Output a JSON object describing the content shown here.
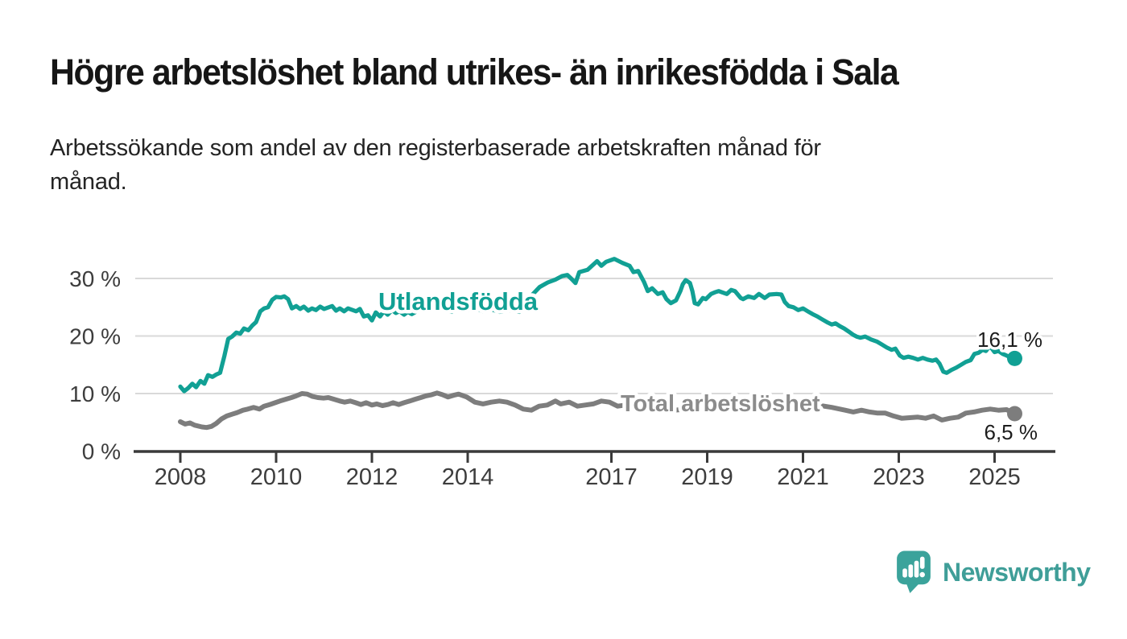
{
  "header": {
    "title": "Högre arbetslöshet bland utrikes- än inrikesfödda i Sala",
    "subtitle_line1": "Arbetssökande som andel av den registerbaserade arbetskraften månad för",
    "subtitle_line2": "månad.",
    "subtitle_full": "Arbetssökande som andel av den registerbaserade arbetskraften månad för månad."
  },
  "chart_data": {
    "type": "line",
    "title": "Högre arbetslöshet bland utrikes- än inrikesfödda i Sala",
    "xlabel": "",
    "ylabel": "",
    "unit": "%",
    "grid": "horizontal",
    "x_axis": {
      "ticks": [
        2008,
        2010,
        2012,
        2014,
        2017,
        2019,
        2021,
        2023,
        2025
      ],
      "labels": [
        "2008",
        "2010",
        "2012",
        "2014",
        "2017",
        "2019",
        "2021",
        "2023",
        "2025"
      ],
      "range_years": [
        2007.05,
        2026.25
      ]
    },
    "y_axis": {
      "ticks": [
        0,
        10,
        20,
        30
      ],
      "labels": [
        "0 %",
        "10 %",
        "20 %",
        "30 %"
      ],
      "grid_values": [
        10,
        20,
        30
      ],
      "range": [
        0,
        35
      ]
    },
    "style": {
      "grid_color": "#d9d9d9",
      "axis_color": "#3a3a3a",
      "value_label_color": "#1d1d1d",
      "background": "#ffffff"
    },
    "series": [
      {
        "id": "utlandsfodda",
        "name": "Utlandsfödda",
        "color": "#11a094",
        "label_color": "#11a094",
        "width": 5.2,
        "dot_r": 9.5,
        "end_value": 16.1,
        "end_label": "16,1 %",
        "points": [
          [
            2008.0,
            11.2
          ],
          [
            2008.08,
            10.4
          ],
          [
            2008.17,
            11.0
          ],
          [
            2008.25,
            11.7
          ],
          [
            2008.33,
            11.1
          ],
          [
            2008.42,
            12.2
          ],
          [
            2008.5,
            11.7
          ],
          [
            2008.58,
            13.2
          ],
          [
            2008.67,
            12.9
          ],
          [
            2008.75,
            13.3
          ],
          [
            2008.83,
            13.6
          ],
          [
            2008.92,
            16.5
          ],
          [
            2009.0,
            19.5
          ],
          [
            2009.08,
            19.9
          ],
          [
            2009.17,
            20.6
          ],
          [
            2009.25,
            20.4
          ],
          [
            2009.33,
            21.3
          ],
          [
            2009.42,
            21.0
          ],
          [
            2009.5,
            21.8
          ],
          [
            2009.58,
            22.4
          ],
          [
            2009.67,
            24.3
          ],
          [
            2009.75,
            24.8
          ],
          [
            2009.83,
            25.0
          ],
          [
            2009.92,
            26.3
          ],
          [
            2010.0,
            26.8
          ],
          [
            2010.1,
            26.7
          ],
          [
            2010.17,
            26.9
          ],
          [
            2010.25,
            26.4
          ],
          [
            2010.33,
            24.8
          ],
          [
            2010.42,
            25.2
          ],
          [
            2010.5,
            24.7
          ],
          [
            2010.58,
            25.1
          ],
          [
            2010.67,
            24.4
          ],
          [
            2010.75,
            24.8
          ],
          [
            2010.83,
            24.5
          ],
          [
            2010.92,
            25.1
          ],
          [
            2011.0,
            24.7
          ],
          [
            2011.17,
            25.2
          ],
          [
            2011.25,
            24.4
          ],
          [
            2011.33,
            24.8
          ],
          [
            2011.42,
            24.3
          ],
          [
            2011.5,
            24.8
          ],
          [
            2011.67,
            24.3
          ],
          [
            2011.75,
            24.7
          ],
          [
            2011.83,
            23.4
          ],
          [
            2011.92,
            23.6
          ],
          [
            2012.0,
            22.7
          ],
          [
            2012.08,
            24.1
          ],
          [
            2012.17,
            23.4
          ],
          [
            2012.25,
            24.3
          ],
          [
            2012.33,
            23.7
          ],
          [
            2012.42,
            24.5
          ],
          [
            2012.5,
            24.0
          ],
          [
            2012.58,
            24.3
          ],
          [
            2012.67,
            23.7
          ],
          [
            2012.75,
            24.2
          ],
          [
            2012.83,
            23.8
          ],
          [
            2013.0,
            24.6
          ],
          [
            2013.17,
            25.0
          ],
          [
            2013.33,
            24.4
          ],
          [
            2013.5,
            24.8
          ],
          [
            2013.67,
            24.2
          ],
          [
            2013.83,
            24.9
          ],
          [
            2014.0,
            24.5
          ],
          [
            2014.17,
            24.8
          ],
          [
            2014.33,
            24.3
          ],
          [
            2014.5,
            24.6
          ],
          [
            2014.67,
            24.2
          ],
          [
            2014.83,
            24.5
          ],
          [
            2015.0,
            24.4
          ],
          [
            2015.08,
            24.2
          ],
          [
            2015.17,
            25.3
          ],
          [
            2015.33,
            27.0
          ],
          [
            2015.5,
            28.5
          ],
          [
            2015.67,
            29.3
          ],
          [
            2015.83,
            29.8
          ],
          [
            2015.97,
            30.4
          ],
          [
            2016.08,
            30.6
          ],
          [
            2016.17,
            29.9
          ],
          [
            2016.25,
            29.2
          ],
          [
            2016.33,
            31.1
          ],
          [
            2016.5,
            31.5
          ],
          [
            2016.7,
            33.0
          ],
          [
            2016.79,
            32.2
          ],
          [
            2016.89,
            32.9
          ],
          [
            2017.06,
            33.4
          ],
          [
            2017.23,
            32.7
          ],
          [
            2017.38,
            32.2
          ],
          [
            2017.46,
            31.1
          ],
          [
            2017.56,
            31.3
          ],
          [
            2017.68,
            29.4
          ],
          [
            2017.76,
            27.8
          ],
          [
            2017.85,
            28.3
          ],
          [
            2017.97,
            27.3
          ],
          [
            2018.07,
            27.6
          ],
          [
            2018.15,
            26.4
          ],
          [
            2018.24,
            25.7
          ],
          [
            2018.35,
            26.2
          ],
          [
            2018.44,
            27.8
          ],
          [
            2018.49,
            29.0
          ],
          [
            2018.55,
            29.7
          ],
          [
            2018.64,
            29.2
          ],
          [
            2018.69,
            27.8
          ],
          [
            2018.74,
            25.7
          ],
          [
            2018.81,
            25.5
          ],
          [
            2018.91,
            26.6
          ],
          [
            2018.97,
            26.4
          ],
          [
            2019.08,
            27.3
          ],
          [
            2019.16,
            27.6
          ],
          [
            2019.24,
            27.8
          ],
          [
            2019.31,
            27.6
          ],
          [
            2019.41,
            27.3
          ],
          [
            2019.5,
            28.0
          ],
          [
            2019.58,
            27.8
          ],
          [
            2019.7,
            26.6
          ],
          [
            2019.75,
            26.4
          ],
          [
            2019.86,
            26.9
          ],
          [
            2019.98,
            26.6
          ],
          [
            2020.08,
            27.3
          ],
          [
            2020.2,
            26.6
          ],
          [
            2020.3,
            27.2
          ],
          [
            2020.45,
            27.3
          ],
          [
            2020.55,
            27.2
          ],
          [
            2020.62,
            25.9
          ],
          [
            2020.7,
            25.2
          ],
          [
            2020.8,
            25.0
          ],
          [
            2020.9,
            24.5
          ],
          [
            2021.0,
            24.8
          ],
          [
            2021.1,
            24.3
          ],
          [
            2021.2,
            23.8
          ],
          [
            2021.3,
            23.4
          ],
          [
            2021.4,
            22.9
          ],
          [
            2021.5,
            22.4
          ],
          [
            2021.6,
            22.0
          ],
          [
            2021.68,
            22.2
          ],
          [
            2021.77,
            21.7
          ],
          [
            2021.86,
            21.3
          ],
          [
            2021.95,
            20.8
          ],
          [
            2022.05,
            20.2
          ],
          [
            2022.12,
            19.9
          ],
          [
            2022.2,
            19.7
          ],
          [
            2022.3,
            19.9
          ],
          [
            2022.42,
            19.4
          ],
          [
            2022.55,
            19.0
          ],
          [
            2022.65,
            18.5
          ],
          [
            2022.75,
            18.0
          ],
          [
            2022.85,
            17.6
          ],
          [
            2022.93,
            17.8
          ],
          [
            2023.02,
            16.6
          ],
          [
            2023.1,
            16.2
          ],
          [
            2023.2,
            16.4
          ],
          [
            2023.3,
            16.2
          ],
          [
            2023.4,
            15.9
          ],
          [
            2023.5,
            16.2
          ],
          [
            2023.6,
            15.9
          ],
          [
            2023.7,
            15.7
          ],
          [
            2023.78,
            15.9
          ],
          [
            2023.85,
            15.2
          ],
          [
            2023.93,
            13.8
          ],
          [
            2024.0,
            13.6
          ],
          [
            2024.1,
            14.1
          ],
          [
            2024.2,
            14.5
          ],
          [
            2024.3,
            15.0
          ],
          [
            2024.4,
            15.5
          ],
          [
            2024.5,
            15.8
          ],
          [
            2024.58,
            16.9
          ],
          [
            2024.67,
            17.1
          ],
          [
            2024.75,
            17.6
          ],
          [
            2024.82,
            17.4
          ],
          [
            2024.9,
            18.3
          ],
          [
            2025.0,
            17.2
          ],
          [
            2025.08,
            17.4
          ],
          [
            2025.17,
            16.9
          ],
          [
            2025.25,
            16.6
          ],
          [
            2025.33,
            16.3
          ],
          [
            2025.42,
            16.1
          ]
        ]
      },
      {
        "id": "total",
        "name": "Total arbetslöshet",
        "color": "#7d7d7d",
        "label_color": "#8c8c8c",
        "width": 6,
        "dot_r": 9.5,
        "end_value": 6.5,
        "end_label": "6,5 %",
        "points": [
          [
            2008.0,
            5.1
          ],
          [
            2008.1,
            4.7
          ],
          [
            2008.2,
            4.9
          ],
          [
            2008.3,
            4.5
          ],
          [
            2008.45,
            4.2
          ],
          [
            2008.55,
            4.1
          ],
          [
            2008.65,
            4.3
          ],
          [
            2008.75,
            4.8
          ],
          [
            2008.86,
            5.6
          ],
          [
            2008.97,
            6.1
          ],
          [
            2009.08,
            6.4
          ],
          [
            2009.19,
            6.7
          ],
          [
            2009.31,
            7.1
          ],
          [
            2009.41,
            7.3
          ],
          [
            2009.53,
            7.6
          ],
          [
            2009.65,
            7.3
          ],
          [
            2009.75,
            7.8
          ],
          [
            2009.87,
            8.1
          ],
          [
            2009.98,
            8.4
          ],
          [
            2010.08,
            8.7
          ],
          [
            2010.2,
            9.0
          ],
          [
            2010.32,
            9.3
          ],
          [
            2010.42,
            9.6
          ],
          [
            2010.54,
            10.0
          ],
          [
            2010.65,
            9.9
          ],
          [
            2010.76,
            9.5
          ],
          [
            2010.87,
            9.3
          ],
          [
            2010.99,
            9.2
          ],
          [
            2011.09,
            9.3
          ],
          [
            2011.21,
            9.0
          ],
          [
            2011.33,
            8.7
          ],
          [
            2011.43,
            8.5
          ],
          [
            2011.55,
            8.7
          ],
          [
            2011.66,
            8.4
          ],
          [
            2011.77,
            8.1
          ],
          [
            2011.88,
            8.4
          ],
          [
            2012.0,
            8.0
          ],
          [
            2012.1,
            8.2
          ],
          [
            2012.22,
            7.9
          ],
          [
            2012.34,
            8.1
          ],
          [
            2012.44,
            8.4
          ],
          [
            2012.56,
            8.1
          ],
          [
            2012.67,
            8.4
          ],
          [
            2012.79,
            8.7
          ],
          [
            2012.9,
            9.0
          ],
          [
            2013.02,
            9.3
          ],
          [
            2013.13,
            9.6
          ],
          [
            2013.25,
            9.8
          ],
          [
            2013.36,
            10.1
          ],
          [
            2013.47,
            9.8
          ],
          [
            2013.59,
            9.4
          ],
          [
            2013.71,
            9.7
          ],
          [
            2013.81,
            9.9
          ],
          [
            2013.98,
            9.4
          ],
          [
            2014.15,
            8.5
          ],
          [
            2014.32,
            8.2
          ],
          [
            2014.49,
            8.5
          ],
          [
            2014.66,
            8.7
          ],
          [
            2014.82,
            8.5
          ],
          [
            2014.99,
            8.0
          ],
          [
            2015.16,
            7.3
          ],
          [
            2015.33,
            7.1
          ],
          [
            2015.49,
            7.8
          ],
          [
            2015.66,
            8.0
          ],
          [
            2015.83,
            8.7
          ],
          [
            2015.94,
            8.2
          ],
          [
            2016.12,
            8.5
          ],
          [
            2016.29,
            7.8
          ],
          [
            2016.45,
            8.0
          ],
          [
            2016.62,
            8.2
          ],
          [
            2016.79,
            8.7
          ],
          [
            2016.96,
            8.5
          ],
          [
            2017.13,
            7.8
          ],
          [
            2017.3,
            8.0
          ],
          [
            2017.5,
            7.9
          ],
          [
            2017.8,
            7.6
          ],
          [
            2018.0,
            7.4
          ],
          [
            2018.3,
            7.1
          ],
          [
            2018.6,
            7.3
          ],
          [
            2019.0,
            7.0
          ],
          [
            2019.4,
            7.2
          ],
          [
            2019.8,
            7.4
          ],
          [
            2020.2,
            8.6
          ],
          [
            2020.5,
            9.0
          ],
          [
            2020.8,
            8.7
          ],
          [
            2021.0,
            8.4
          ],
          [
            2021.3,
            8.0
          ],
          [
            2021.6,
            7.6
          ],
          [
            2021.88,
            7.1
          ],
          [
            2022.05,
            6.8
          ],
          [
            2022.22,
            7.1
          ],
          [
            2022.39,
            6.8
          ],
          [
            2022.56,
            6.6
          ],
          [
            2022.72,
            6.6
          ],
          [
            2022.89,
            6.1
          ],
          [
            2023.06,
            5.7
          ],
          [
            2023.23,
            5.8
          ],
          [
            2023.4,
            5.9
          ],
          [
            2023.56,
            5.7
          ],
          [
            2023.73,
            6.1
          ],
          [
            2023.9,
            5.4
          ],
          [
            2024.07,
            5.7
          ],
          [
            2024.24,
            5.9
          ],
          [
            2024.4,
            6.6
          ],
          [
            2024.57,
            6.8
          ],
          [
            2024.74,
            7.1
          ],
          [
            2024.91,
            7.3
          ],
          [
            2025.08,
            7.1
          ],
          [
            2025.25,
            7.2
          ],
          [
            2025.42,
            6.5
          ]
        ]
      }
    ]
  },
  "footer": {
    "brand": "Newsworthy",
    "brand_text_color": "#3f9e98",
    "brand_icon_color": "#3ba39b",
    "logo_icon": "bar-chart-speech-bubble"
  }
}
